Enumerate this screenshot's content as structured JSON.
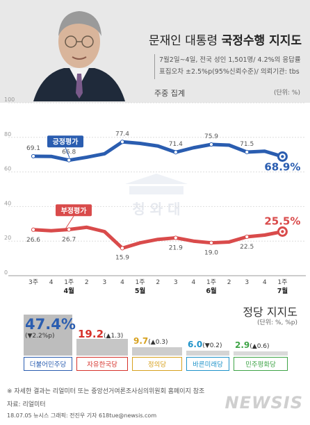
{
  "header": {
    "title_plain": "문재인 대통령 ",
    "title_bold": "국정수행 지지도",
    "info_line1": "7월2일~4일, 전국 성인 1,501명/ 4.2%의 응답률",
    "info_line2": "표집오차 ±2.5%p(95%신뢰수준)/ 의뢰기관: tbs",
    "subtitle": "주중 집계",
    "unit": "(단위: %)"
  },
  "watermark": "청 와 대",
  "chart_data": {
    "type": "line",
    "x_ticks": [
      "3주",
      "4",
      "1주",
      "2",
      "3",
      "4",
      "1주",
      "2",
      "3",
      "4",
      "1주",
      "2",
      "3",
      "4",
      "1주"
    ],
    "month_labels": [
      {
        "label": "4월",
        "x_index": 2
      },
      {
        "label": "5월",
        "x_index": 6
      },
      {
        "label": "6월",
        "x_index": 10
      },
      {
        "label": "7월",
        "x_index": 14
      }
    ],
    "ylim": [
      0,
      100
    ],
    "y_ticks": [
      0,
      20,
      40,
      60,
      80,
      100
    ],
    "series": [
      {
        "name": "긍정평가",
        "color": "#2a5db0",
        "values": [
          69.1,
          69.0,
          66.8,
          68.5,
          70.5,
          77.4,
          76.5,
          75.0,
          71.4,
          74.0,
          75.9,
          75.5,
          71.5,
          72.0,
          68.9
        ],
        "labels": [
          {
            "index": 0,
            "text": "69.1"
          },
          {
            "index": 2,
            "text": "66.8"
          },
          {
            "index": 5,
            "text": "77.4"
          },
          {
            "index": 8,
            "text": "71.4"
          },
          {
            "index": 10,
            "text": "75.9"
          },
          {
            "index": 12,
            "text": "71.5"
          }
        ],
        "final_label": "68.9%"
      },
      {
        "name": "부정평가",
        "color": "#d94b4b",
        "values": [
          26.6,
          26.0,
          26.7,
          28.0,
          25.5,
          15.9,
          19.0,
          21.0,
          21.9,
          20.0,
          19.0,
          19.5,
          22.5,
          23.5,
          25.5
        ],
        "labels": [
          {
            "index": 0,
            "text": "26.6"
          },
          {
            "index": 2,
            "text": "26.7"
          },
          {
            "index": 5,
            "text": "15.9"
          },
          {
            "index": 8,
            "text": "21.9"
          },
          {
            "index": 10,
            "text": "19.0"
          },
          {
            "index": 12,
            "text": "22.5"
          }
        ],
        "final_label": "25.5%"
      }
    ]
  },
  "party_support": {
    "title": "정당 지지도",
    "unit": "(단위: %, %p)",
    "parties": [
      {
        "name": "더불어민주당",
        "value": "47.4",
        "unit": "%",
        "change": "(▼2.2%p)",
        "value_num": 47.4,
        "color": "#2a5db0",
        "bar_color": "#bdbdbd"
      },
      {
        "name": "자유한국당",
        "value": "19.2",
        "unit": "",
        "change": "(▲1.3)",
        "value_num": 19.2,
        "color": "#d6322b",
        "bar_color": "#c6c6c6"
      },
      {
        "name": "정의당",
        "value": "9.7",
        "unit": "",
        "change": "(▲0.3)",
        "value_num": 9.7,
        "color": "#d7a11e",
        "bar_color": "#cdcdcd"
      },
      {
        "name": "바른미래당",
        "value": "6.0",
        "unit": "",
        "change": "(▼0.2)",
        "value_num": 6.0,
        "color": "#1f93c9",
        "bar_color": "#d4d4d4"
      },
      {
        "name": "민주평화당",
        "value": "2.9",
        "unit": "",
        "change": "(▲0.6)",
        "value_num": 2.9,
        "color": "#3fa447",
        "bar_color": "#dadada"
      }
    ]
  },
  "footer": {
    "note": "※ 자세한 결과는 리얼미터 또는 중앙선거여론조사심의위원회 홈페이지 참조",
    "source": "자료: 리얼미터",
    "credit": "18.07.05 뉴시스 그래픽: 전진우 기자 618tue@newsis.com",
    "logo": "NEWSIS"
  }
}
